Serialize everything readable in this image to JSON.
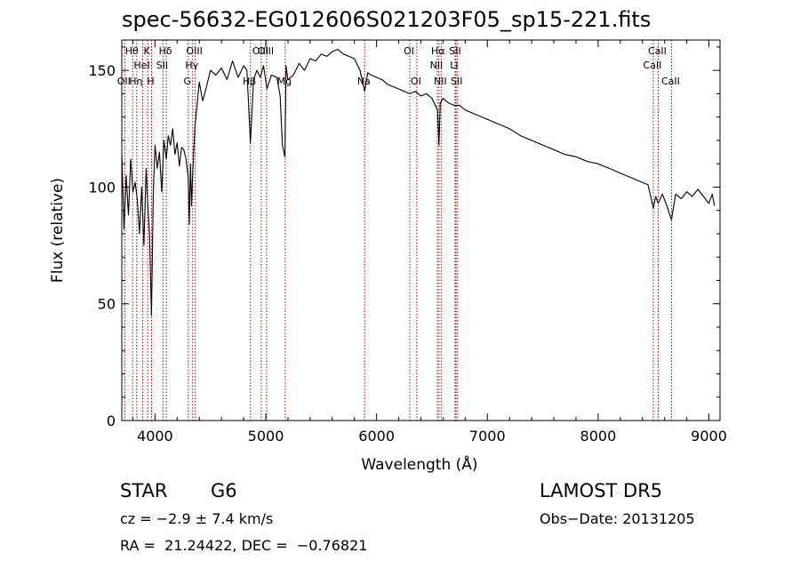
{
  "chart_data": {
    "type": "line",
    "title": "spec-56632-EG012606S021203F05_sp15-221.fits",
    "xlabel": "Wavelength (Å)",
    "ylabel": "Flux (relative)",
    "xlim": [
      3700,
      9100
    ],
    "ylim": [
      0,
      163
    ],
    "x_ticks": [
      4000,
      5000,
      6000,
      7000,
      8000,
      9000
    ],
    "y_ticks": [
      0,
      50,
      100,
      150
    ],
    "line_color": "#000000",
    "marker_color": "#b00000",
    "series": [
      {
        "x": [
          3700,
          3720,
          3740,
          3760,
          3780,
          3800,
          3820,
          3840,
          3860,
          3880,
          3900,
          3920,
          3935,
          3950,
          3968,
          3985,
          4000,
          4020,
          4040,
          4060,
          4080,
          4102,
          4120,
          4140,
          4160,
          4180,
          4200,
          4220,
          4240,
          4260,
          4280,
          4300,
          4310,
          4320,
          4330,
          4340,
          4360,
          4380,
          4400,
          4430,
          4460,
          4500,
          4550,
          4600,
          4650,
          4700,
          4750,
          4800,
          4830,
          4861,
          4890,
          4920,
          4950,
          4980,
          5010,
          5050,
          5100,
          5130,
          5150,
          5172,
          5183,
          5200,
          5250,
          5300,
          5350,
          5400,
          5450,
          5500,
          5550,
          5600,
          5650,
          5700,
          5750,
          5800,
          5850,
          5893,
          5920,
          5950,
          6000,
          6050,
          6100,
          6150,
          6200,
          6250,
          6300,
          6350,
          6400,
          6450,
          6500,
          6530,
          6550,
          6563,
          6575,
          6600,
          6650,
          6700,
          6750,
          6800,
          6900,
          7000,
          7100,
          7200,
          7300,
          7400,
          7500,
          7600,
          7700,
          7800,
          7900,
          8000,
          8100,
          8200,
          8300,
          8400,
          8450,
          8498,
          8520,
          8542,
          8580,
          8620,
          8662,
          8700,
          8750,
          8800,
          8850,
          8900,
          8950,
          9000,
          9030,
          9050
        ],
        "y": [
          115,
          82,
          105,
          88,
          112,
          98,
          102,
          95,
          80,
          100,
          75,
          108,
          92,
          80,
          45,
          98,
          118,
          108,
          115,
          98,
          120,
          112,
          122,
          118,
          125,
          114,
          119,
          109,
          117,
          116,
          112,
          104,
          84,
          110,
          92,
          106,
          126,
          135,
          145,
          137,
          142,
          150,
          148,
          151,
          146,
          154,
          147,
          152,
          150,
          119,
          146,
          150,
          147,
          152,
          142,
          148,
          147,
          139,
          118,
          113,
          152,
          146,
          148,
          153,
          150,
          155,
          154,
          157,
          156,
          158,
          159,
          157,
          156,
          155,
          150,
          141,
          149,
          148,
          147,
          146,
          144,
          143,
          142,
          141,
          140,
          141,
          139,
          140,
          138,
          135,
          133,
          118,
          136,
          138,
          136,
          135,
          135,
          133,
          131,
          129,
          127,
          125,
          122,
          120,
          118,
          116,
          114,
          113,
          111,
          110,
          108,
          106,
          104,
          102,
          101,
          91,
          96,
          93,
          97,
          92,
          86,
          97,
          95,
          98,
          96,
          99,
          96,
          93,
          97,
          92
        ]
      }
    ],
    "line_markers": [
      {
        "wavelength": 3727,
        "label": "OII",
        "row": 3
      },
      {
        "wavelength": 3798,
        "label": "Hθ",
        "row": 1
      },
      {
        "wavelength": 3835,
        "label": "Hη",
        "row": 3
      },
      {
        "wavelength": 3889,
        "label": "HeI",
        "row": 2
      },
      {
        "wavelength": 3934,
        "label": "K",
        "row": 1
      },
      {
        "wavelength": 3969,
        "label": "H",
        "row": 3
      },
      {
        "wavelength": 4072,
        "label": "SII",
        "row": 2
      },
      {
        "wavelength": 4102,
        "label": "Hδ",
        "row": 1
      },
      {
        "wavelength": 4300,
        "label": "G",
        "row": 3
      },
      {
        "wavelength": 4340,
        "label": "Hγ",
        "row": 2
      },
      {
        "wavelength": 4363,
        "label": "OIII",
        "row": 1
      },
      {
        "wavelength": 4861,
        "label": "Hβ",
        "row": 3
      },
      {
        "wavelength": 4959,
        "label": "OIII",
        "row": 1
      },
      {
        "wavelength": 5007,
        "label": "OIII",
        "row": 1
      },
      {
        "wavelength": 5175,
        "label": "Mg",
        "row": 3
      },
      {
        "wavelength": 5893,
        "label": "Na",
        "row": 3
      },
      {
        "wavelength": 6300,
        "label": "OI",
        "row": 1
      },
      {
        "wavelength": 6363,
        "label": "OI",
        "row": 3
      },
      {
        "wavelength": 6548,
        "label": "NII",
        "row": 2
      },
      {
        "wavelength": 6563,
        "label": "Hα",
        "row": 1
      },
      {
        "wavelength": 6583,
        "label": "NII",
        "row": 3
      },
      {
        "wavelength": 6708,
        "label": "Li",
        "row": 2
      },
      {
        "wavelength": 6717,
        "label": "SII",
        "row": 1
      },
      {
        "wavelength": 6731,
        "label": "SII",
        "row": 3
      },
      {
        "wavelength": 8498,
        "label": "CaII",
        "row": 2
      },
      {
        "wavelength": 8542,
        "label": "CaII",
        "row": 1
      },
      {
        "wavelength": 8662,
        "label": "CaII",
        "row": 3
      }
    ]
  },
  "info": {
    "object_class": "STAR",
    "subclass": "G6",
    "survey": "LAMOST DR5",
    "redshift": "cz = −2.9 ± 7.4 km/s",
    "obs_date": "Obs−Date: 20131205",
    "coords": "RA =  21.24422, DEC =  −0.76821"
  }
}
